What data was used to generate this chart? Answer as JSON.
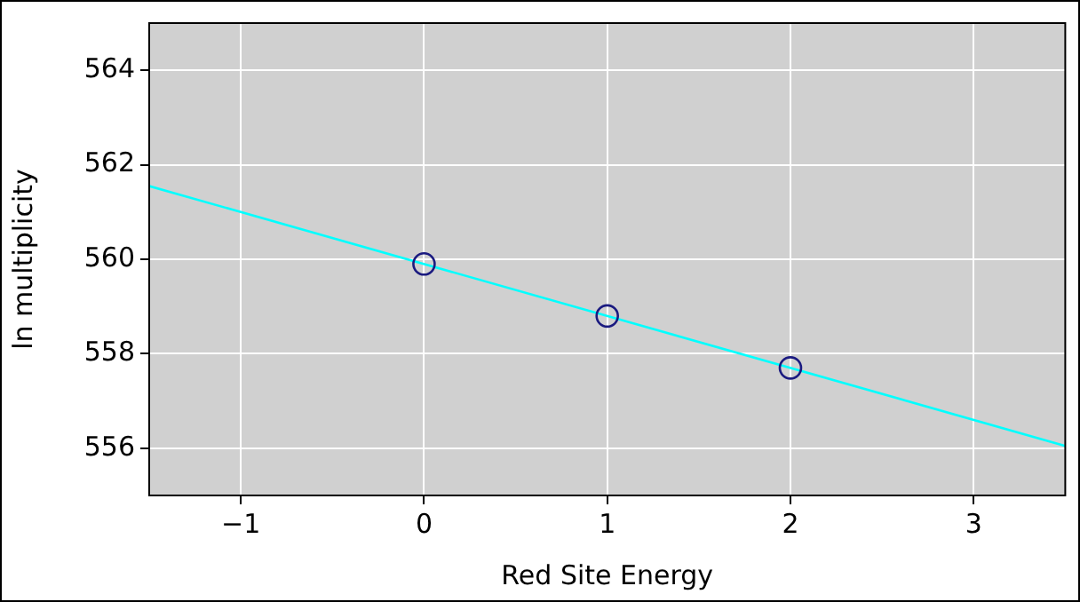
{
  "chart_data": {
    "type": "scatter",
    "xlabel": "Red Site Energy",
    "ylabel": "ln multiplicity",
    "xlim": [
      -1.5,
      3.5
    ],
    "xticks": [
      {
        "value": -1,
        "label": "−1"
      },
      0,
      1,
      2,
      3
    ],
    "ylim": [
      555,
      565
    ],
    "yticks": [
      556,
      558,
      560,
      562,
      564
    ],
    "grid": true,
    "legend": false,
    "marker": "circle",
    "series": [
      {
        "type": "line",
        "color": "#00ffff",
        "x": [
          -1.5,
          3.5
        ],
        "values": [
          561.55,
          556.05
        ],
        "marker": "none",
        "line_style": "solid"
      },
      {
        "type": "scatter",
        "color": "#1a1a80",
        "x": [
          0,
          1,
          2
        ],
        "values": [
          559.9,
          558.8,
          557.7
        ]
      }
    ]
  }
}
